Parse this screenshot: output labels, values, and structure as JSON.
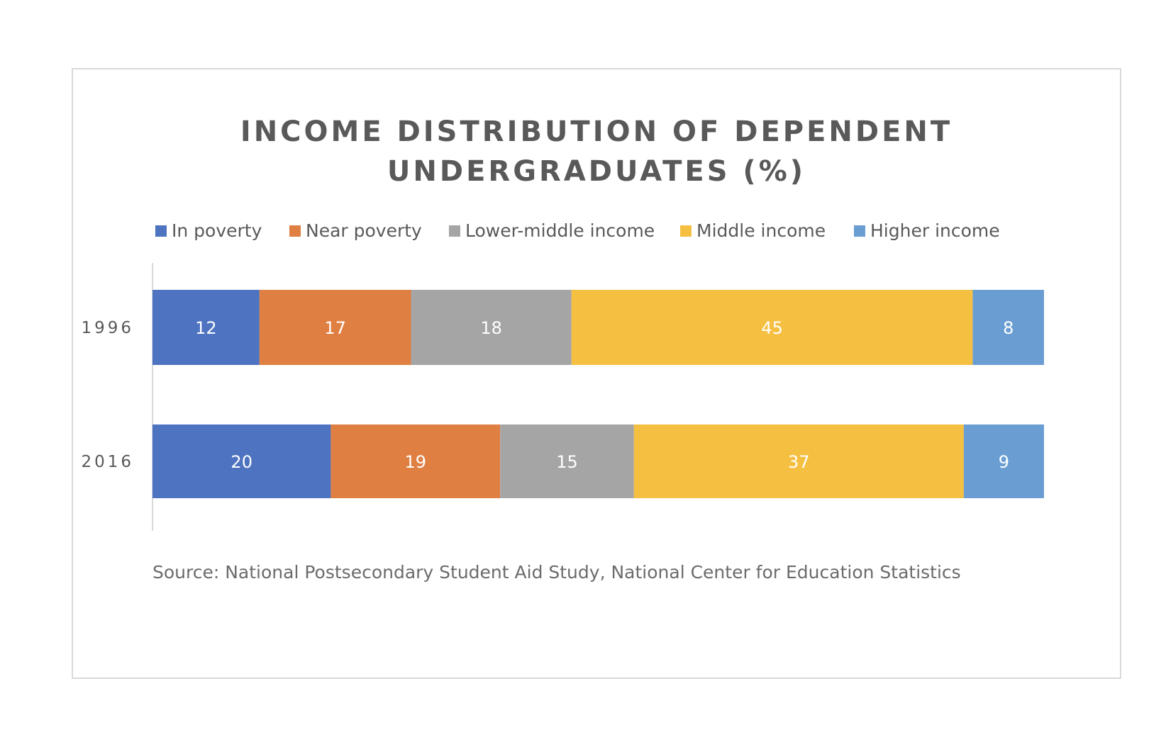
{
  "chart_data": {
    "type": "bar",
    "orientation": "horizontal",
    "stacked": true,
    "title": "INCOME DISTRIBUTION OF DEPENDENT UNDERGRADUATES (%)",
    "title_lines": [
      "INCOME DISTRIBUTION OF DEPENDENT",
      "UNDERGRADUATES (%)"
    ],
    "categories": [
      "1996",
      "2016"
    ],
    "series": [
      {
        "name": "In poverty",
        "color": "#4e73c0",
        "values": [
          12,
          20
        ]
      },
      {
        "name": "Near poverty",
        "color": "#e07f42",
        "values": [
          17,
          19
        ]
      },
      {
        "name": "Lower-middle income",
        "color": "#a5a5a5",
        "values": [
          18,
          15
        ]
      },
      {
        "name": "Middle income",
        "color": "#f5c042",
        "values": [
          45,
          37
        ]
      },
      {
        "name": "Higher income",
        "color": "#6a9ed3",
        "values": [
          8,
          9
        ]
      }
    ],
    "xlim": [
      0,
      100
    ],
    "data_labels": true,
    "legend_position": "top",
    "grid": false,
    "source": "Source: National Postsecondary Student Aid Study, National Center for Education Statistics"
  }
}
